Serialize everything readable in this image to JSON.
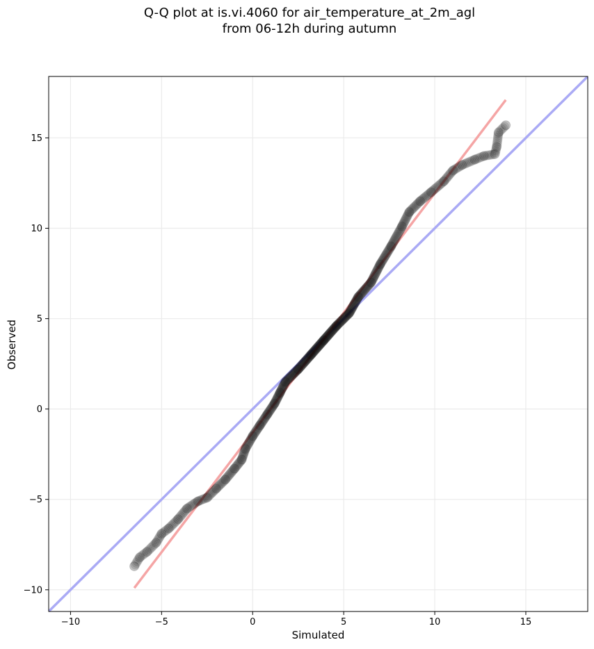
{
  "chart_data": {
    "type": "scatter",
    "title": "Q-Q plot at is.vi.4060 for air_temperature_at_2m_agl",
    "subtitle": "from 06-12h during autumn",
    "xlabel": "Simulated",
    "ylabel": "Observed",
    "xlim": [
      -11.2,
      18.4
    ],
    "ylim": [
      -11.2,
      18.4
    ],
    "xticks": [
      -10,
      -5,
      0,
      5,
      10,
      15
    ],
    "yticks": [
      -10,
      -5,
      0,
      5,
      10,
      15
    ],
    "xtick_labels": [
      "−10",
      "−5",
      "0",
      "5",
      "10",
      "15"
    ],
    "ytick_labels": [
      "−10",
      "−5",
      "0",
      "5",
      "10",
      "15"
    ],
    "grid": true,
    "reference_line": {
      "name": "1:1 line",
      "color": "#aaaaf5",
      "points": [
        [
          -11.2,
          -11.2
        ],
        [
          18.4,
          18.4
        ]
      ]
    },
    "fit_line": {
      "color": "#f5a5a5",
      "points": [
        [
          -6.5,
          -9.9
        ],
        [
          13.9,
          17.1
        ]
      ]
    },
    "quantile_curve": [
      [
        -6.5,
        -8.7
      ],
      [
        -6.2,
        -8.2
      ],
      [
        -5.8,
        -7.9
      ],
      [
        -5.3,
        -7.4
      ],
      [
        -5.0,
        -6.9
      ],
      [
        -4.6,
        -6.6
      ],
      [
        -4.1,
        -6.1
      ],
      [
        -3.6,
        -5.5
      ],
      [
        -3.0,
        -5.1
      ],
      [
        -2.5,
        -4.9
      ],
      [
        -2.0,
        -4.4
      ],
      [
        -1.5,
        -3.9
      ],
      [
        -1.0,
        -3.3
      ],
      [
        -0.6,
        -2.8
      ],
      [
        -0.4,
        -2.2
      ],
      [
        0.0,
        -1.5
      ],
      [
        0.4,
        -0.9
      ],
      [
        0.8,
        -0.3
      ],
      [
        1.2,
        0.3
      ],
      [
        1.5,
        0.9
      ],
      [
        1.8,
        1.5
      ],
      [
        2.5,
        2.2
      ],
      [
        3.2,
        3.0
      ],
      [
        3.9,
        3.8
      ],
      [
        4.6,
        4.6
      ],
      [
        5.3,
        5.3
      ],
      [
        5.8,
        6.2
      ],
      [
        6.5,
        7.0
      ],
      [
        7.0,
        8.0
      ],
      [
        7.6,
        9.0
      ],
      [
        8.2,
        10.1
      ],
      [
        8.6,
        10.9
      ],
      [
        9.2,
        11.5
      ],
      [
        9.8,
        12.0
      ],
      [
        10.5,
        12.6
      ],
      [
        11.0,
        13.2
      ],
      [
        11.5,
        13.5
      ],
      [
        12.2,
        13.8
      ],
      [
        12.7,
        14.0
      ],
      [
        13.3,
        14.1
      ],
      [
        13.4,
        14.5
      ],
      [
        13.5,
        15.3
      ],
      [
        13.9,
        15.7
      ]
    ],
    "point_color": "#000000",
    "point_alpha": 0.12
  }
}
